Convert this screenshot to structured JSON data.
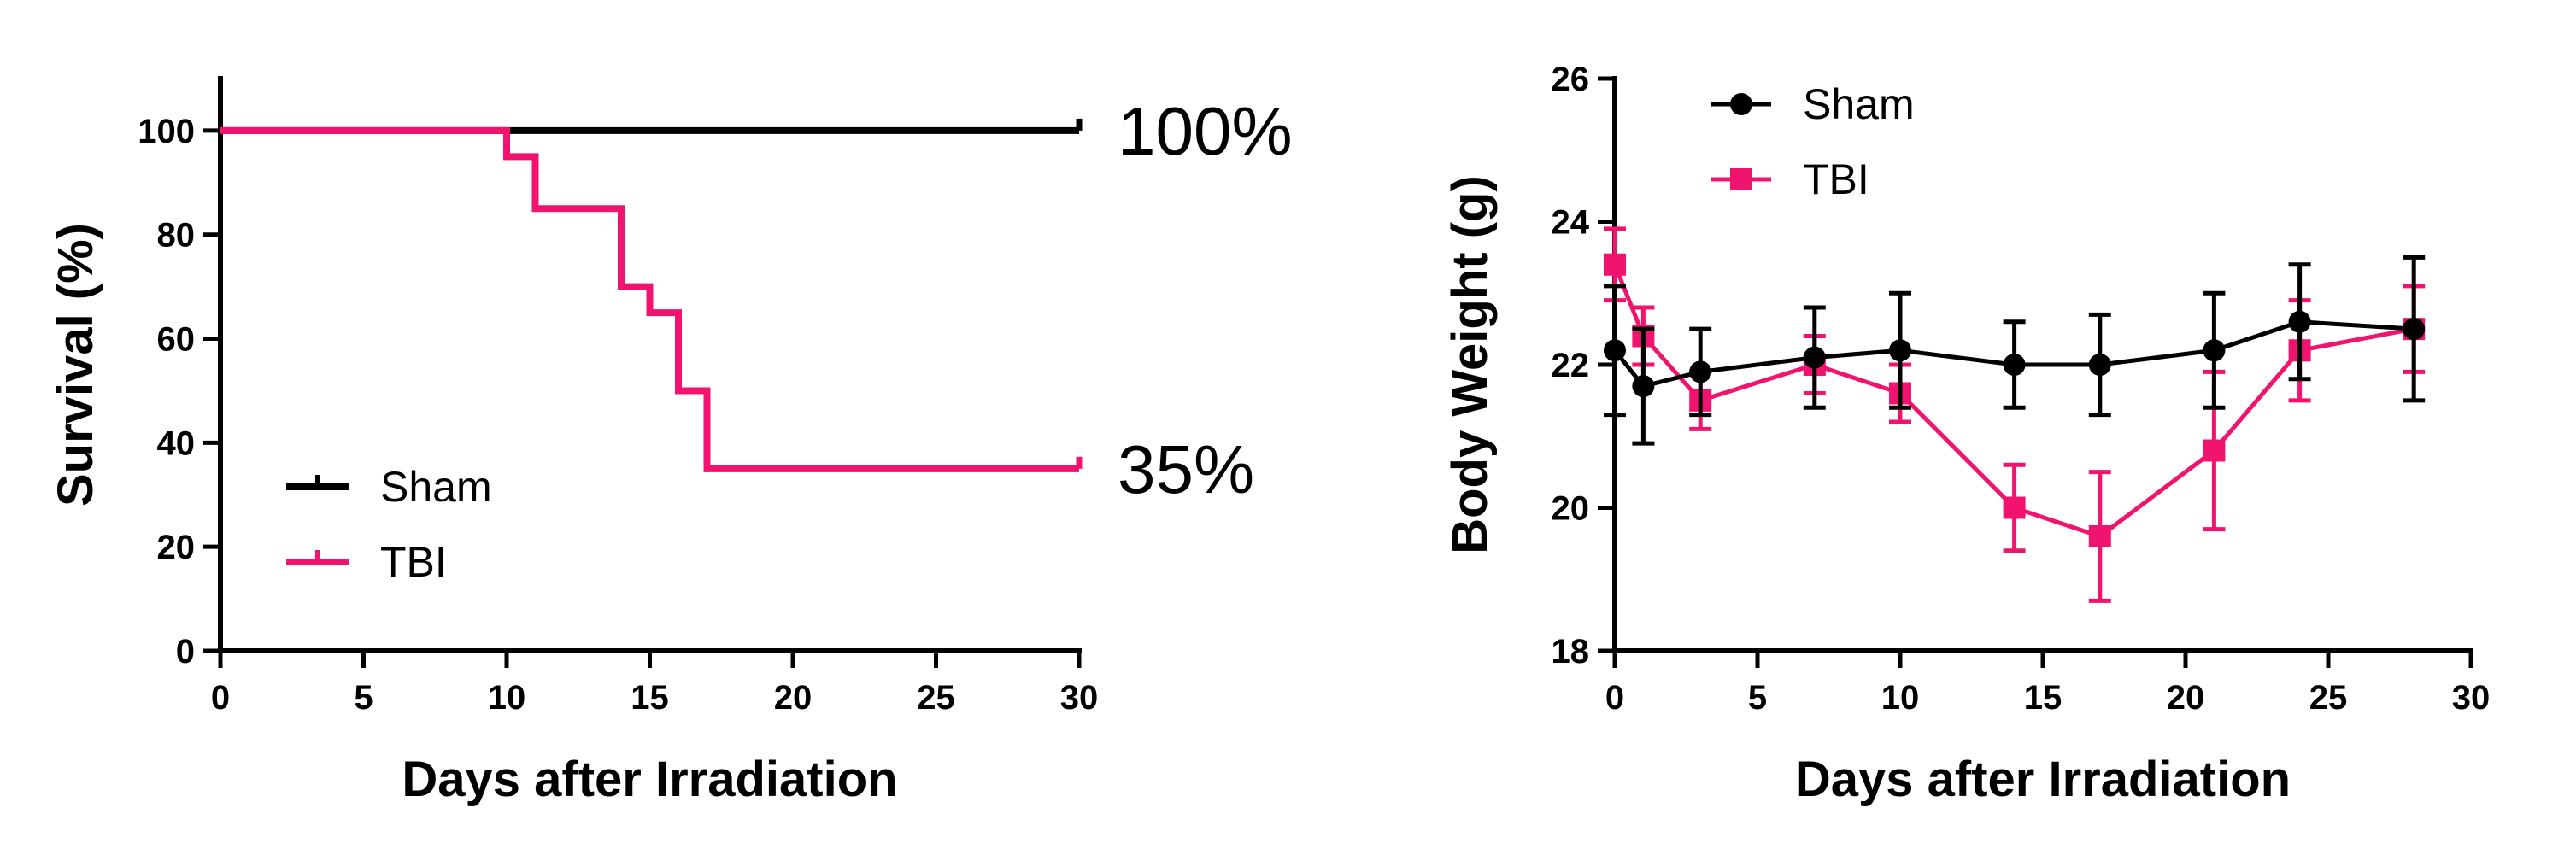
{
  "chart_data": [
    {
      "type": "line",
      "subtype": "kaplan-meier-survival",
      "title": "",
      "xlabel": "Days after Irradiation",
      "ylabel": "Survival (%)",
      "xlim": [
        0,
        30
      ],
      "ylim": [
        0,
        110
      ],
      "xticks": [
        0,
        5,
        10,
        15,
        20,
        25,
        30
      ],
      "yticks": [
        0,
        20,
        40,
        60,
        80,
        100
      ],
      "grid": false,
      "legend_position": "lower-left",
      "series": [
        {
          "name": "Sham",
          "color": "#000000",
          "x": [
            0,
            30
          ],
          "y": [
            100,
            100
          ]
        },
        {
          "name": "TBI",
          "color": "#f0146e",
          "x": [
            0,
            10,
            11,
            14,
            15,
            16,
            17,
            30
          ],
          "y": [
            100,
            95,
            85,
            70,
            65,
            50,
            35,
            35
          ]
        }
      ],
      "annotations": [
        {
          "text": "100%",
          "x": 30,
          "y": 100
        },
        {
          "text": "35%",
          "x": 30,
          "y": 35
        }
      ]
    },
    {
      "type": "line",
      "subtype": "line-with-error-bars",
      "title": "",
      "xlabel": "Days after Irradiation",
      "ylabel": "Body Weight (g)",
      "xlim": [
        0,
        30
      ],
      "ylim": [
        18,
        26
      ],
      "xticks": [
        0,
        5,
        10,
        15,
        20,
        25,
        30
      ],
      "yticks": [
        18,
        20,
        22,
        24,
        26
      ],
      "grid": false,
      "legend_position": "top-left",
      "series": [
        {
          "name": "Sham",
          "color": "#000000",
          "marker": "circle",
          "x": [
            0,
            1,
            3,
            7,
            10,
            14,
            17,
            21,
            24,
            28
          ],
          "y": [
            22.2,
            21.7,
            21.9,
            22.1,
            22.2,
            22.0,
            22.0,
            22.2,
            22.6,
            22.5
          ],
          "err": [
            0.9,
            0.8,
            0.6,
            0.7,
            0.8,
            0.6,
            0.7,
            0.8,
            0.8,
            1.0
          ]
        },
        {
          "name": "TBI",
          "color": "#f0146e",
          "marker": "square",
          "x": [
            0,
            1,
            3,
            7,
            10,
            14,
            17,
            21,
            24,
            28
          ],
          "y": [
            23.4,
            22.4,
            21.5,
            22.0,
            21.6,
            20.0,
            19.6,
            20.8,
            22.2,
            22.5
          ],
          "err": [
            0.5,
            0.4,
            0.4,
            0.4,
            0.4,
            0.6,
            0.9,
            1.1,
            0.7,
            0.6
          ]
        }
      ]
    }
  ]
}
